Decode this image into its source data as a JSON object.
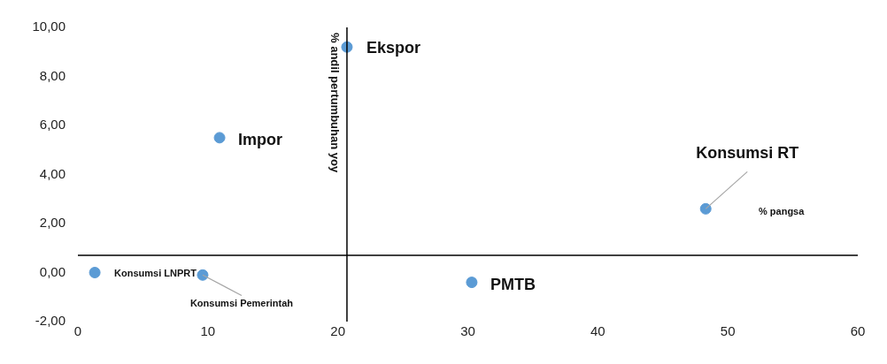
{
  "chart_data": {
    "type": "scatter",
    "xlabel": "% pangsa",
    "ylabel": "% andil pertumbuhan yoy",
    "x": [
      1.3,
      9.6,
      10.9,
      20.7,
      30.3,
      48.3
    ],
    "series": [
      {
        "color": "#5b9bd5",
        "values": [
          0.0,
          -0.1,
          5.5,
          9.2,
          -0.4,
          2.6
        ]
      }
    ],
    "xlim": [
      0,
      60
    ],
    "xticks": [
      0,
      10,
      20,
      30,
      40,
      50,
      60
    ],
    "ylim": [
      -2,
      10
    ],
    "yticks": [
      {
        "value": -2,
        "label": "-2,00"
      },
      {
        "value": 0,
        "label": "0,00"
      },
      {
        "value": 2,
        "label": "2,00"
      },
      {
        "value": 4,
        "label": "4,00"
      },
      {
        "value": 6,
        "label": "6,00"
      },
      {
        "value": 8,
        "label": "8,00"
      },
      {
        "value": 10,
        "label": "10,00"
      }
    ],
    "ref_lines": [
      {
        "axis": "x",
        "value": 20.7,
        "color": "#000000"
      },
      {
        "axis": "y",
        "value": 0.7,
        "color": "#000000"
      }
    ],
    "annotations": [
      {
        "text": "Konsumsi LNPRT",
        "x": 1.3,
        "y": 0.0
      },
      {
        "text": "Konsumsi Pemerintah",
        "x": 9.6,
        "y": -0.1
      },
      {
        "text": "Impor",
        "x": 10.9,
        "y": 5.5
      },
      {
        "text": "Ekspor",
        "x": 20.7,
        "y": 9.2
      },
      {
        "text": "PMTB",
        "x": 30.3,
        "y": -0.4
      },
      {
        "text": "Konsumsi RT",
        "x": 48.3,
        "y": 2.6
      }
    ],
    "grid": false,
    "legend": false,
    "marker": "circle"
  }
}
